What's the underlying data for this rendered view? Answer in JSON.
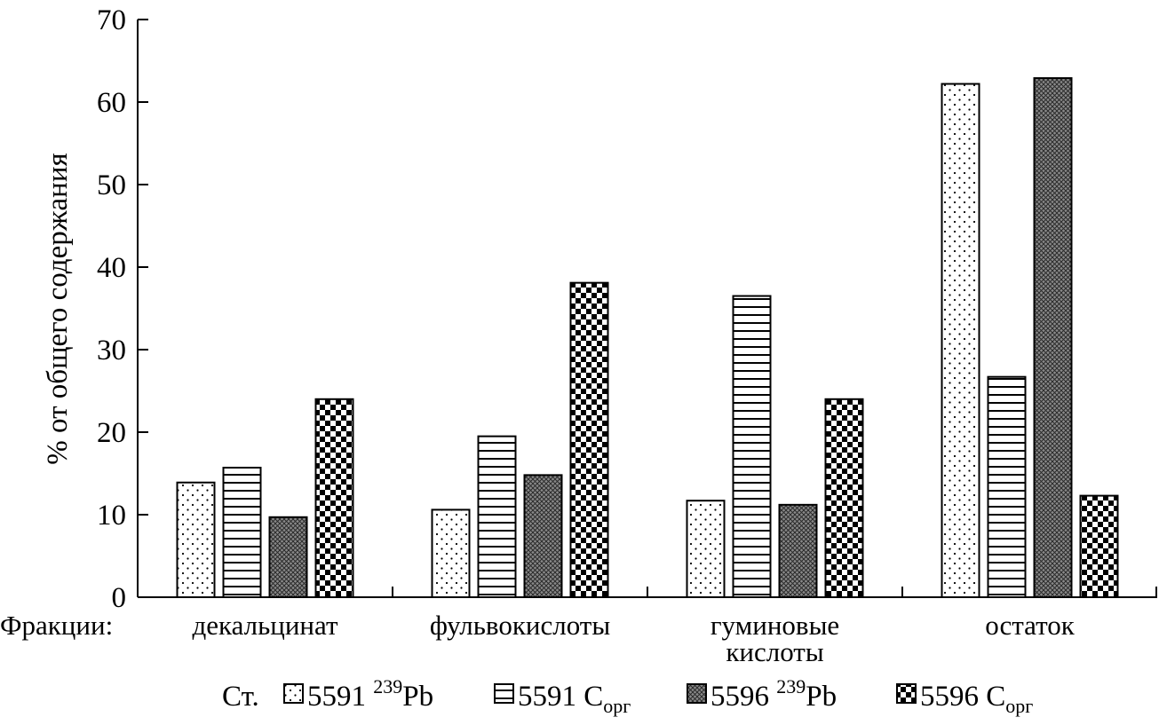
{
  "chart_data": {
    "type": "bar",
    "ylabel": "% от общего содержания",
    "x_prefix": "Фракции:",
    "categories": [
      [
        "декальцинат"
      ],
      [
        "фульвокислоты"
      ],
      [
        "гуминовые",
        "кислоты"
      ],
      [
        "остаток"
      ]
    ],
    "ylim": [
      0,
      70
    ],
    "yticks": [
      0,
      10,
      20,
      30,
      40,
      50,
      60,
      70
    ],
    "legend_prefix": "Ст.",
    "legend_placement": "bottom",
    "grid": false,
    "series": [
      {
        "name": "5591 239Pb",
        "label": {
          "main": "5591 ",
          "sup": "239",
          "tail": "Pb"
        },
        "pattern": "dots",
        "values": [
          13.9,
          10.6,
          11.7,
          62.2
        ]
      },
      {
        "name": "5591 Cорг",
        "label": {
          "main": "5591 C",
          "sub": "орг"
        },
        "pattern": "hlines",
        "values": [
          15.7,
          19.5,
          36.5,
          26.7
        ]
      },
      {
        "name": "5596 239Pb",
        "label": {
          "main": "5596 ",
          "sup": "239",
          "tail": "Pb"
        },
        "pattern": "crosshatch",
        "values": [
          9.7,
          14.8,
          11.2,
          62.9
        ]
      },
      {
        "name": "5596 Cорг",
        "label": {
          "main": "5596 C",
          "sub": "орг"
        },
        "pattern": "checker",
        "values": [
          24.0,
          38.1,
          24.0,
          12.3
        ]
      }
    ]
  }
}
